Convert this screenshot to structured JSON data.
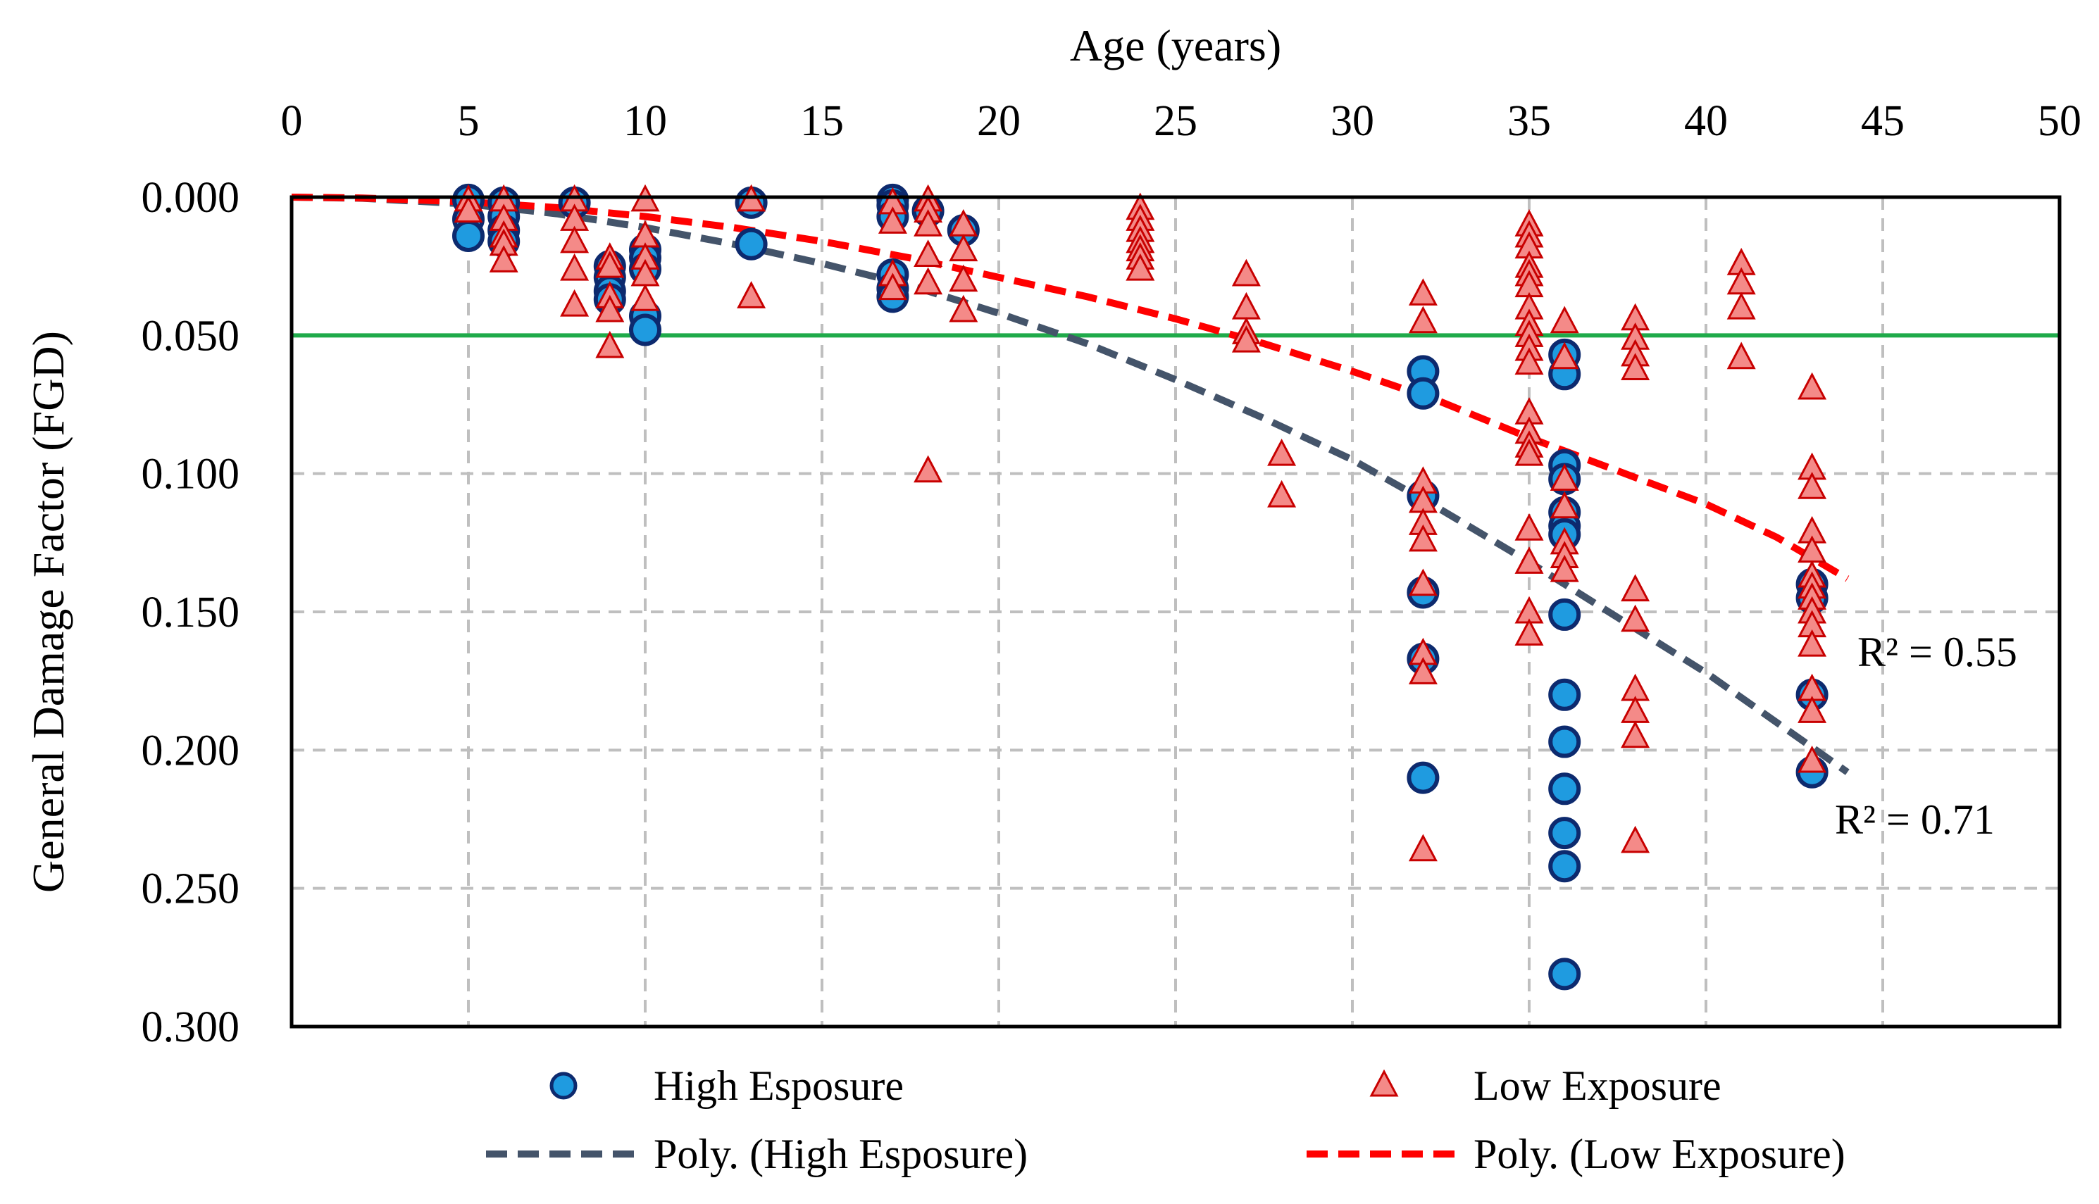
{
  "chart_data": {
    "type": "scatter",
    "title": "",
    "xlabel": "Age (years)",
    "ylabel": "General Damage Factor (FGD)",
    "xlim": [
      0,
      50
    ],
    "ylim": [
      0,
      0.3
    ],
    "y_inverted": true,
    "x_axis_position": "top",
    "grid": true,
    "x_ticks": [
      0,
      5,
      10,
      15,
      20,
      25,
      30,
      35,
      40,
      45,
      50
    ],
    "x_tick_labels": [
      "0",
      "5",
      "10",
      "15",
      "20",
      "25",
      "30",
      "35",
      "40",
      "45",
      "50"
    ],
    "y_ticks": [
      0,
      0.05,
      0.1,
      0.15,
      0.2,
      0.25,
      0.3
    ],
    "y_tick_labels": [
      "0.000",
      "0.050",
      "0.100",
      "0.150",
      "0.200",
      "0.250",
      "0.300"
    ],
    "threshold": {
      "y": 0.05,
      "color": "#1faa4a"
    },
    "legend_position": "bottom",
    "series": [
      {
        "name": "High Esposure",
        "marker": "circle",
        "color": "#1f9be0",
        "edge_color": "#0d2a6e",
        "points": [
          [
            5,
            0.001
          ],
          [
            5,
            0.008
          ],
          [
            5,
            0.014
          ],
          [
            6,
            0.002
          ],
          [
            6,
            0.007
          ],
          [
            6,
            0.012
          ],
          [
            6,
            0.016
          ],
          [
            8,
            0.002
          ],
          [
            9,
            0.025
          ],
          [
            9,
            0.029
          ],
          [
            9,
            0.034
          ],
          [
            9,
            0.037
          ],
          [
            10,
            0.019
          ],
          [
            10,
            0.022
          ],
          [
            10,
            0.026
          ],
          [
            10,
            0.043
          ],
          [
            10,
            0.048
          ],
          [
            13,
            0.002
          ],
          [
            13,
            0.017
          ],
          [
            17,
            0.001
          ],
          [
            17,
            0.003
          ],
          [
            17,
            0.007
          ],
          [
            17,
            0.028
          ],
          [
            17,
            0.033
          ],
          [
            17,
            0.036
          ],
          [
            18,
            0.005
          ],
          [
            19,
            0.012
          ],
          [
            32,
            0.063
          ],
          [
            32,
            0.071
          ],
          [
            32,
            0.108
          ],
          [
            32,
            0.143
          ],
          [
            32,
            0.167
          ],
          [
            32,
            0.21
          ],
          [
            36,
            0.057
          ],
          [
            36,
            0.064
          ],
          [
            36,
            0.097
          ],
          [
            36,
            0.102
          ],
          [
            36,
            0.114
          ],
          [
            36,
            0.119
          ],
          [
            36,
            0.122
          ],
          [
            36,
            0.151
          ],
          [
            36,
            0.18
          ],
          [
            36,
            0.197
          ],
          [
            36,
            0.214
          ],
          [
            36,
            0.23
          ],
          [
            36,
            0.242
          ],
          [
            36,
            0.281
          ],
          [
            43,
            0.14
          ],
          [
            43,
            0.145
          ],
          [
            43,
            0.18
          ],
          [
            43,
            0.208
          ]
        ]
      },
      {
        "name": "Low Exposure",
        "marker": "triangle",
        "color": "#f48a88",
        "edge_color": "#c80000",
        "points": [
          [
            5,
            0.001
          ],
          [
            5,
            0.005
          ],
          [
            6,
            0.001
          ],
          [
            6,
            0.008
          ],
          [
            6,
            0.014
          ],
          [
            6,
            0.017
          ],
          [
            6,
            0.023
          ],
          [
            8,
            0.001
          ],
          [
            8,
            0.008
          ],
          [
            8,
            0.016
          ],
          [
            8,
            0.026
          ],
          [
            8,
            0.039
          ],
          [
            9,
            0.022
          ],
          [
            9,
            0.025
          ],
          [
            9,
            0.036
          ],
          [
            9,
            0.041
          ],
          [
            9,
            0.054
          ],
          [
            10,
            0.001
          ],
          [
            10,
            0.014
          ],
          [
            10,
            0.022
          ],
          [
            10,
            0.028
          ],
          [
            10,
            0.037
          ],
          [
            13,
            0.001
          ],
          [
            13,
            0.036
          ],
          [
            17,
            0.002
          ],
          [
            17,
            0.009
          ],
          [
            17,
            0.028
          ],
          [
            17,
            0.033
          ],
          [
            18,
            0.001
          ],
          [
            18,
            0.005
          ],
          [
            18,
            0.01
          ],
          [
            18,
            0.021
          ],
          [
            18,
            0.031
          ],
          [
            18,
            0.099
          ],
          [
            19,
            0.01
          ],
          [
            19,
            0.019
          ],
          [
            19,
            0.03
          ],
          [
            19,
            0.041
          ],
          [
            24,
            0.004
          ],
          [
            24,
            0.008
          ],
          [
            24,
            0.012
          ],
          [
            24,
            0.016
          ],
          [
            24,
            0.019
          ],
          [
            24,
            0.022
          ],
          [
            24,
            0.026
          ],
          [
            27,
            0.028
          ],
          [
            27,
            0.04
          ],
          [
            27,
            0.049
          ],
          [
            27,
            0.052
          ],
          [
            28,
            0.093
          ],
          [
            28,
            0.108
          ],
          [
            32,
            0.035
          ],
          [
            32,
            0.045
          ],
          [
            32,
            0.103
          ],
          [
            32,
            0.11
          ],
          [
            32,
            0.118
          ],
          [
            32,
            0.124
          ],
          [
            32,
            0.14
          ],
          [
            32,
            0.165
          ],
          [
            32,
            0.172
          ],
          [
            32,
            0.236
          ],
          [
            35,
            0.01
          ],
          [
            35,
            0.014
          ],
          [
            35,
            0.018
          ],
          [
            35,
            0.025
          ],
          [
            35,
            0.028
          ],
          [
            35,
            0.032
          ],
          [
            35,
            0.04
          ],
          [
            35,
            0.046
          ],
          [
            35,
            0.05
          ],
          [
            35,
            0.055
          ],
          [
            35,
            0.06
          ],
          [
            35,
            0.078
          ],
          [
            35,
            0.085
          ],
          [
            35,
            0.09
          ],
          [
            35,
            0.093
          ],
          [
            35,
            0.12
          ],
          [
            35,
            0.132
          ],
          [
            35,
            0.15
          ],
          [
            35,
            0.158
          ],
          [
            36,
            0.045
          ],
          [
            36,
            0.058
          ],
          [
            36,
            0.102
          ],
          [
            36,
            0.112
          ],
          [
            36,
            0.125
          ],
          [
            36,
            0.13
          ],
          [
            36,
            0.135
          ],
          [
            38,
            0.044
          ],
          [
            38,
            0.051
          ],
          [
            38,
            0.057
          ],
          [
            38,
            0.062
          ],
          [
            38,
            0.142
          ],
          [
            38,
            0.153
          ],
          [
            38,
            0.178
          ],
          [
            38,
            0.186
          ],
          [
            38,
            0.195
          ],
          [
            38,
            0.233
          ],
          [
            41,
            0.024
          ],
          [
            41,
            0.031
          ],
          [
            41,
            0.04
          ],
          [
            41,
            0.058
          ],
          [
            43,
            0.069
          ],
          [
            43,
            0.098
          ],
          [
            43,
            0.105
          ],
          [
            43,
            0.121
          ],
          [
            43,
            0.128
          ],
          [
            43,
            0.137
          ],
          [
            43,
            0.141
          ],
          [
            43,
            0.145
          ],
          [
            43,
            0.15
          ],
          [
            43,
            0.155
          ],
          [
            43,
            0.162
          ],
          [
            43,
            0.178
          ],
          [
            43,
            0.186
          ],
          [
            43,
            0.204
          ]
        ]
      }
    ],
    "trendlines": [
      {
        "name": "Poly. (High Esposure)",
        "series": "High Esposure",
        "type": "poly2",
        "x_range": [
          0,
          44
        ],
        "color": "#44546a",
        "points": [
          [
            0,
            0.0
          ],
          [
            2,
            0.0004
          ],
          [
            5,
            0.0025
          ],
          [
            7.5,
            0.006
          ],
          [
            10,
            0.011
          ],
          [
            12.5,
            0.017
          ],
          [
            15,
            0.024
          ],
          [
            17.5,
            0.032
          ],
          [
            20,
            0.042
          ],
          [
            22.5,
            0.053
          ],
          [
            25,
            0.066
          ],
          [
            27.5,
            0.08
          ],
          [
            30,
            0.095
          ],
          [
            32.5,
            0.113
          ],
          [
            35,
            0.132
          ],
          [
            37.5,
            0.152
          ],
          [
            40,
            0.172
          ],
          [
            42,
            0.19
          ],
          [
            44,
            0.208
          ]
        ],
        "r2_label": "R² = 0.71"
      },
      {
        "name": "Poly. (Low Exposure)",
        "series": "Low Exposure",
        "type": "poly2",
        "x_range": [
          0,
          44
        ],
        "color": "#ff0000",
        "points": [
          [
            0,
            0.0
          ],
          [
            2,
            0.0003
          ],
          [
            5,
            0.0017
          ],
          [
            7.5,
            0.0038
          ],
          [
            10,
            0.007
          ],
          [
            12.5,
            0.011
          ],
          [
            15,
            0.016
          ],
          [
            17.5,
            0.022
          ],
          [
            20,
            0.029
          ],
          [
            22.5,
            0.036
          ],
          [
            25,
            0.044
          ],
          [
            27.5,
            0.053
          ],
          [
            30,
            0.063
          ],
          [
            32.5,
            0.074
          ],
          [
            35,
            0.087
          ],
          [
            37.5,
            0.099
          ],
          [
            40,
            0.111
          ],
          [
            42,
            0.123
          ],
          [
            44,
            0.138
          ]
        ],
        "r2_label": "R² = 0.55"
      }
    ]
  }
}
